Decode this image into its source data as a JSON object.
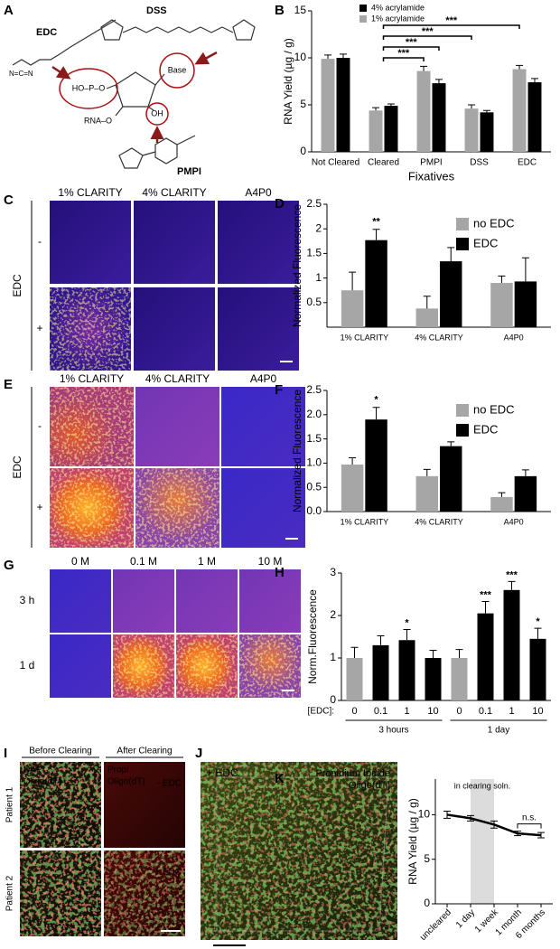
{
  "panels": {
    "A": {
      "label": "A",
      "edc": "EDC",
      "edc_group": "N=C=N",
      "dss": "DSS",
      "pmpi": "PMPI",
      "phosphate": "HO–P–O",
      "base": "Base",
      "hydroxyl": "OH",
      "rna": "RNA–O"
    },
    "C": {
      "label": "C",
      "columns": [
        "1% CLARITY",
        "4% CLARITY",
        "A4P0"
      ],
      "rows": [
        "-",
        "+"
      ],
      "row_title": "EDC"
    },
    "E": {
      "label": "E",
      "columns": [
        "1% CLARITY",
        "4% CLARITY",
        "A4P0"
      ],
      "rows": [
        "-",
        "+"
      ],
      "row_title": "EDC"
    },
    "G": {
      "label": "G",
      "columns": [
        "0 M",
        "0.1 M",
        "1 M",
        "10 M"
      ],
      "rows": [
        "3 h",
        "1 d"
      ]
    },
    "I": {
      "label": "I",
      "columns": [
        "Before Clearing",
        "After Clearing"
      ],
      "rows": [
        "Patient 1",
        "Patient 2"
      ],
      "before_stains": [
        "DAPI",
        "Oligo(dT)"
      ],
      "after_stains": [
        "PropI",
        "Oligo(dT)"
      ],
      "conditions": [
        "- EDC",
        "+ EDC"
      ]
    },
    "J": {
      "label": "J",
      "condition": "+ EDC",
      "stains": [
        "Propidium Iodide",
        "Oligo(dT)"
      ]
    }
  },
  "chart_data": [
    {
      "panel": "B",
      "type": "bar",
      "ylabel": "RNA Yield (µg / g)",
      "xlabel": "Fixatives",
      "categories": [
        "Not Cleared",
        "Cleared",
        "PMPI",
        "DSS",
        "EDC"
      ],
      "series": [
        {
          "name": "1% acrylamide",
          "color": "#a6a6a6",
          "values": [
            9.9,
            4.4,
            8.6,
            4.6,
            8.8
          ],
          "errors": [
            0.4,
            0.3,
            0.5,
            0.4,
            0.4
          ]
        },
        {
          "name": "4% acrylamide",
          "color": "#000000",
          "values": [
            10.0,
            4.9,
            7.3,
            4.2,
            7.4
          ],
          "errors": [
            0.4,
            0.2,
            0.4,
            0.2,
            0.4
          ]
        }
      ],
      "ylim": [
        0,
        15
      ],
      "yticks": [
        0,
        5,
        10,
        15
      ],
      "legend": "upper left",
      "annotations": [
        "***",
        "***",
        "***",
        "***"
      ]
    },
    {
      "panel": "D",
      "type": "bar",
      "ylabel": "Normalized Fluorescence",
      "categories": [
        "1% CLARITY",
        "4% CLARITY",
        "A4P0"
      ],
      "series": [
        {
          "name": "no EDC",
          "color": "#a6a6a6",
          "values": [
            0.75,
            0.38,
            0.9
          ],
          "errors": [
            0.37,
            0.25,
            0.14
          ]
        },
        {
          "name": "EDC",
          "color": "#000000",
          "values": [
            1.77,
            1.34,
            0.93
          ],
          "errors": [
            0.22,
            0.28,
            0.48
          ]
        }
      ],
      "ylim": [
        0,
        2.5
      ],
      "yticks": [
        0.5,
        1,
        1.5,
        2,
        2.5
      ],
      "legend": "upper right",
      "annotations": [
        "**"
      ]
    },
    {
      "panel": "F",
      "type": "bar",
      "ylabel": "Normalized Fluorescence",
      "categories": [
        "1% CLARITY",
        "4% CLARITY",
        "A4P0"
      ],
      "series": [
        {
          "name": "no EDC",
          "color": "#a6a6a6",
          "values": [
            0.97,
            0.73,
            0.3
          ],
          "errors": [
            0.14,
            0.14,
            0.09
          ]
        },
        {
          "name": "EDC",
          "color": "#000000",
          "values": [
            1.9,
            1.35,
            0.73
          ],
          "errors": [
            0.25,
            0.09,
            0.13
          ]
        }
      ],
      "ylim": [
        0,
        2.5
      ],
      "yticks": [
        {
          "value": 0,
          "label": "0.0"
        },
        0.5,
        {
          "value": 1,
          "label": "1.0"
        },
        1.5,
        {
          "value": 2,
          "label": "2.0"
        },
        2.5
      ],
      "legend": "upper right",
      "annotations": [
        "*"
      ]
    },
    {
      "panel": "H",
      "type": "bar",
      "ylabel": "Norm.Fluorescence",
      "category_title": "[EDC]:",
      "categories": [
        "0",
        "0.1",
        "1",
        "10",
        "0",
        "0.1",
        "1",
        "10"
      ],
      "groups": [
        "3 hours",
        "1 day"
      ],
      "values": [
        1.0,
        1.3,
        1.42,
        1.0,
        1.0,
        2.05,
        2.6,
        1.45
      ],
      "errors": [
        0.25,
        0.22,
        0.25,
        0.18,
        0.2,
        0.28,
        0.2,
        0.25
      ],
      "colors": [
        "#a6a6a6",
        "#000000",
        "#000000",
        "#000000",
        "#a6a6a6",
        "#000000",
        "#000000",
        "#000000"
      ],
      "ylim": [
        0,
        3
      ],
      "yticks": [
        0,
        1,
        2,
        3
      ],
      "annotations": [
        "*",
        "***",
        "***",
        "*"
      ]
    },
    {
      "panel": "K",
      "type": "line",
      "ylabel": "RNA Yield (µg / g)",
      "categories": [
        "uncleared",
        "1 day",
        "1 week",
        "1 month",
        "6 months"
      ],
      "values": [
        10.0,
        9.6,
        8.9,
        7.9,
        7.7
      ],
      "errors": [
        0.4,
        0.3,
        0.4,
        0.25,
        0.3
      ],
      "color": "#000000",
      "ylim": [
        0,
        14
      ],
      "yticks": [
        0,
        5,
        10
      ],
      "shaded_label": "in clearing soln.",
      "annotations": [
        "n.s."
      ]
    }
  ]
}
